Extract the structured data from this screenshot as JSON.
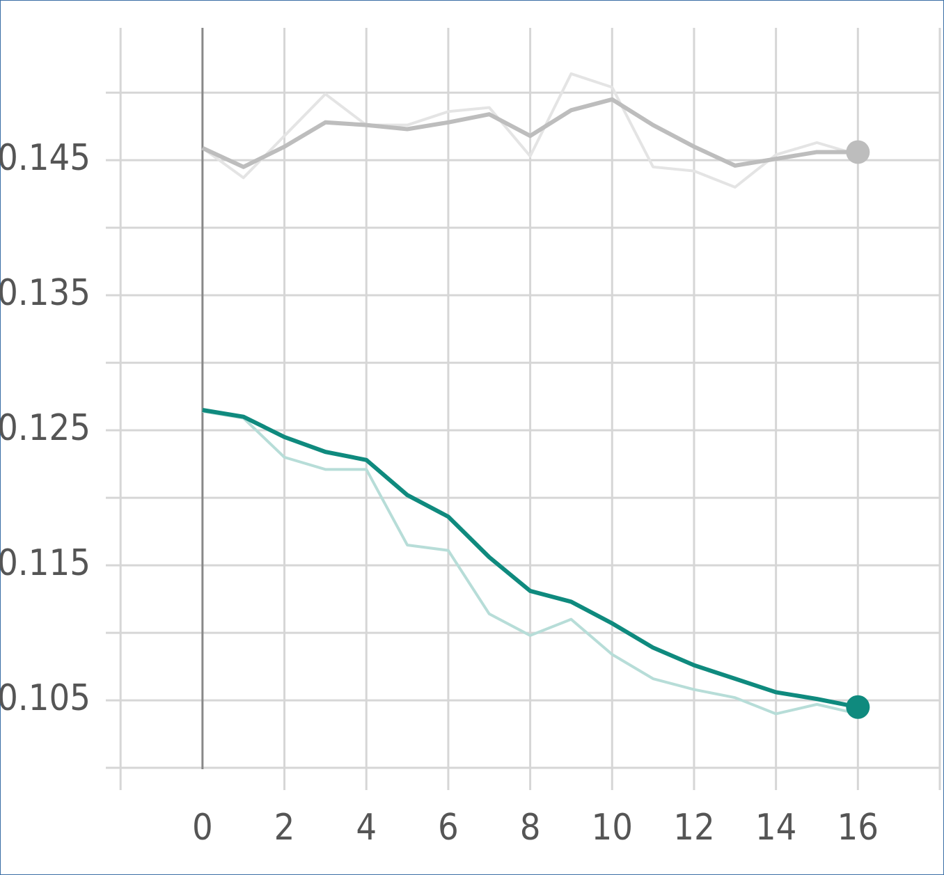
{
  "chart_data": {
    "type": "line",
    "x": [
      0,
      1,
      2,
      3,
      4,
      5,
      6,
      7,
      8,
      9,
      10,
      11,
      12,
      13,
      14,
      15,
      16
    ],
    "series": [
      {
        "color": "#e4e4e4",
        "values": [
          0.1459,
          0.1437,
          0.1468,
          0.1499,
          0.1476,
          0.1476,
          0.1486,
          0.1489,
          0.1453,
          0.1514,
          0.1504,
          0.1445,
          0.1442,
          0.143,
          0.1454,
          0.1463,
          0.1454
        ]
      },
      {
        "color": "#bdbdbd",
        "values": [
          0.1459,
          0.1445,
          0.146,
          0.1478,
          0.1476,
          0.1473,
          0.1478,
          0.1484,
          0.1468,
          0.1487,
          0.1495,
          0.1476,
          0.146,
          0.1446,
          0.1451,
          0.1456,
          0.1456
        ],
        "end_marker": true
      },
      {
        "color": "#b7ddd8",
        "values": [
          0.1264,
          0.1259,
          0.123,
          0.1221,
          0.1221,
          0.1165,
          0.1161,
          0.1114,
          0.1098,
          0.111,
          0.1084,
          0.1066,
          0.1058,
          0.1052,
          0.104,
          0.1047,
          0.104
        ]
      },
      {
        "color": "#0f8a7e",
        "values": [
          0.1265,
          0.126,
          0.1245,
          0.1234,
          0.1228,
          0.1202,
          0.1186,
          0.1156,
          0.1131,
          0.1123,
          0.1107,
          0.1089,
          0.1076,
          0.1066,
          0.1056,
          0.1051,
          0.1045
        ],
        "end_marker": true
      }
    ],
    "xlim": [
      -2.36,
      18
    ],
    "xticks": [
      0,
      2,
      4,
      6,
      8,
      10,
      12,
      14,
      16
    ],
    "ylim": [
      0.0999,
      0.1548
    ],
    "yticks": [
      0.105,
      0.115,
      0.125,
      0.135,
      0.145
    ],
    "grid": true
  }
}
